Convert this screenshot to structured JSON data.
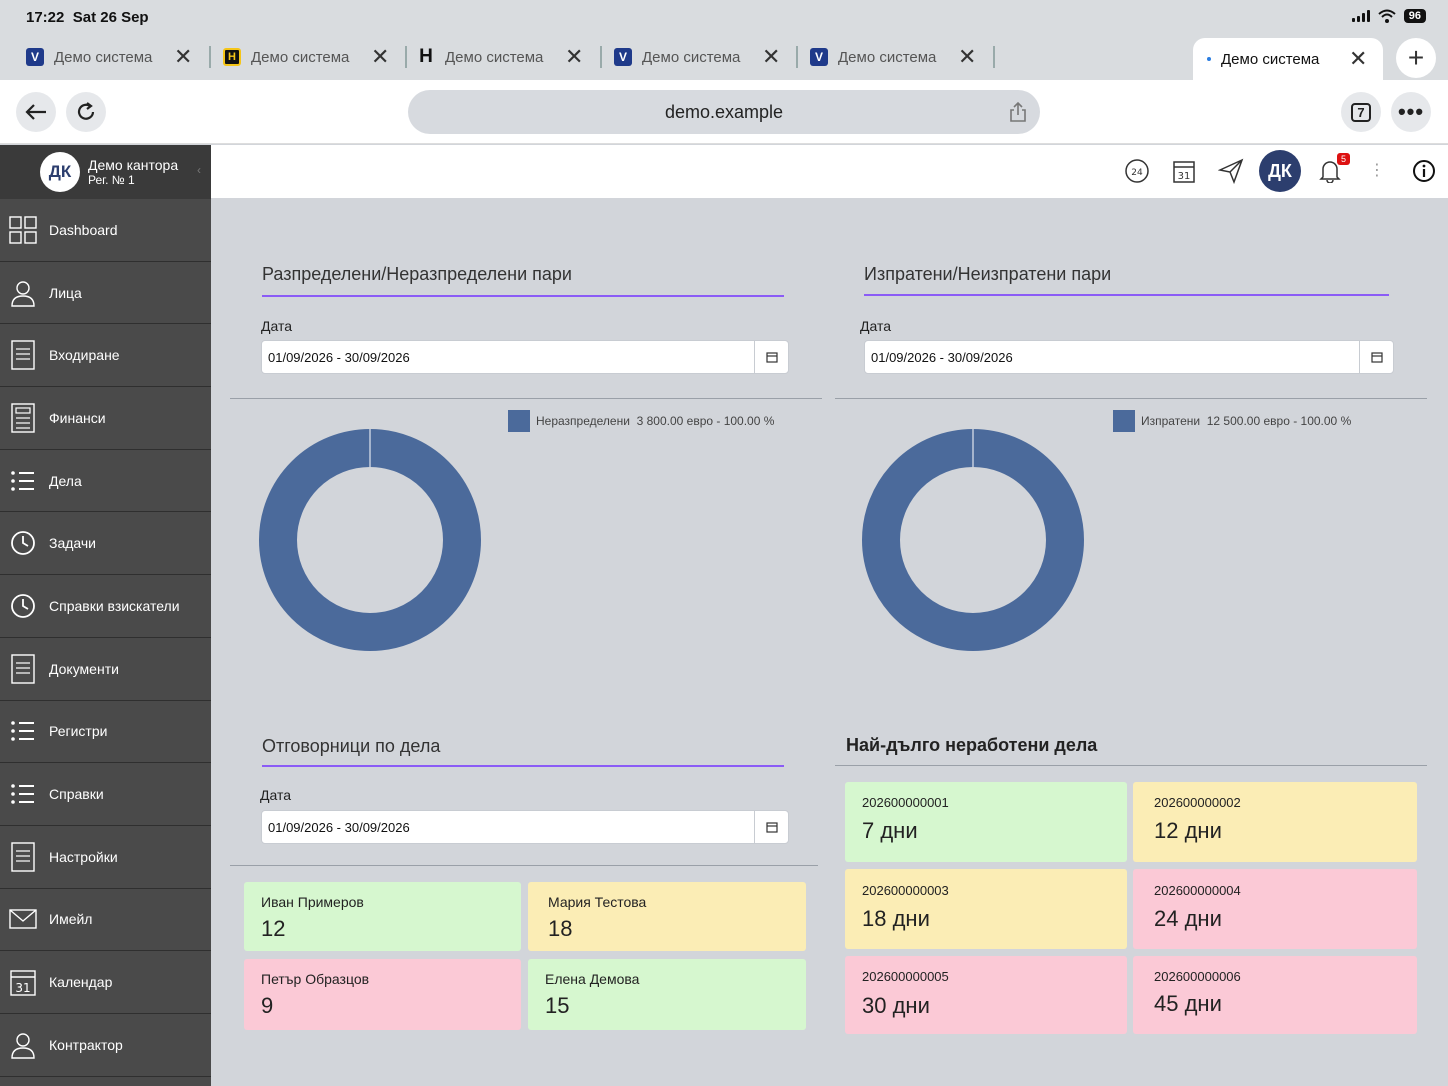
{
  "status": {
    "time": "17:22",
    "date": "Sat 26 Sep",
    "battery": "96"
  },
  "tabs": [
    {
      "title": "Демо система",
      "favicon": "V"
    },
    {
      "title": "Демо система",
      "favicon": "H"
    },
    {
      "title": "Демо система",
      "favicon": "H"
    },
    {
      "title": "Демо система",
      "favicon": "V"
    },
    {
      "title": "Демо система",
      "favicon": "V"
    },
    {
      "title": "Демо система",
      "favicon": "dot"
    }
  ],
  "tab_count": "7",
  "address": "demo.example",
  "sidebar": {
    "office_initials": "ДК",
    "office_name": "Демо кантора",
    "office_reg": "Рег. № 1",
    "items": [
      {
        "label": "Dashboard",
        "icon": "dashboard-icon"
      },
      {
        "label": "Лица",
        "icon": "person-icon"
      },
      {
        "label": "Входиране",
        "icon": "document-icon"
      },
      {
        "label": "Финанси",
        "icon": "calculator-icon"
      },
      {
        "label": "Дела",
        "icon": "list-icon"
      },
      {
        "label": "Задачи",
        "icon": "clock-icon"
      },
      {
        "label": "Справки взискатели",
        "icon": "clock-icon"
      },
      {
        "label": "Документи",
        "icon": "document-icon"
      },
      {
        "label": "Регистри",
        "icon": "list-icon"
      },
      {
        "label": "Справки",
        "icon": "list-icon"
      },
      {
        "label": "Настройки",
        "icon": "document-icon"
      },
      {
        "label": "Имейл",
        "icon": "mail-icon"
      },
      {
        "label": "Календар",
        "icon": "calendar-icon"
      },
      {
        "label": "Контрактор",
        "icon": "person-icon"
      }
    ]
  },
  "header": {
    "calendar_day": "31",
    "avatar": "ДК",
    "notifications": "5",
    "clock_badge": "24"
  },
  "distributed": {
    "title": "Разпределени/Неразпределени пари",
    "date_label": "Дата",
    "date_value": "01/09/2026 - 30/09/2026",
    "legend_name": "Неразпределени",
    "legend_value": "3 800.00 евро - 100.00 %"
  },
  "sent": {
    "title": "Изпратени/Неизпратени пари",
    "date_label": "Дата",
    "date_value": "01/09/2026 - 30/09/2026",
    "legend_name": "Изпратени",
    "legend_value": "12 500.00 евро - 100.00 %"
  },
  "responsible": {
    "title": "Отговорници по дела",
    "date_label": "Дата",
    "date_value": "01/09/2026 - 30/09/2026",
    "people": [
      {
        "name": "Иван Примеров",
        "count": "12"
      },
      {
        "name": "Мария Тестова",
        "count": "18"
      },
      {
        "name": "Петър Образцов",
        "count": "9"
      },
      {
        "name": "Елена Демова",
        "count": "15"
      }
    ]
  },
  "longest": {
    "title": "Най-дълго неработени дела",
    "cases": [
      {
        "id": "202600000001",
        "days": "7 дни"
      },
      {
        "id": "202600000002",
        "days": "12 дни"
      },
      {
        "id": "202600000003",
        "days": "18 дни"
      },
      {
        "id": "202600000004",
        "days": "24 дни"
      },
      {
        "id": "202600000005",
        "days": "30 дни"
      },
      {
        "id": "202600000006",
        "days": "45 дни"
      }
    ]
  },
  "chart_data": [
    {
      "type": "pie",
      "categories": [
        "Неразпределени"
      ],
      "values": [
        3800
      ],
      "colors": [
        "#4b6a9b"
      ]
    },
    {
      "type": "pie",
      "categories": [
        "Изпратени"
      ],
      "values": [
        12500
      ],
      "colors": [
        "#4b6a9b"
      ]
    }
  ],
  "colors": {
    "donut": "#4b6a9b",
    "accent": "#8b5cf6",
    "tile_green": "#d6f7cf",
    "tile_yellow": "#fbedb5",
    "tile_pink": "#fbc9d6"
  }
}
